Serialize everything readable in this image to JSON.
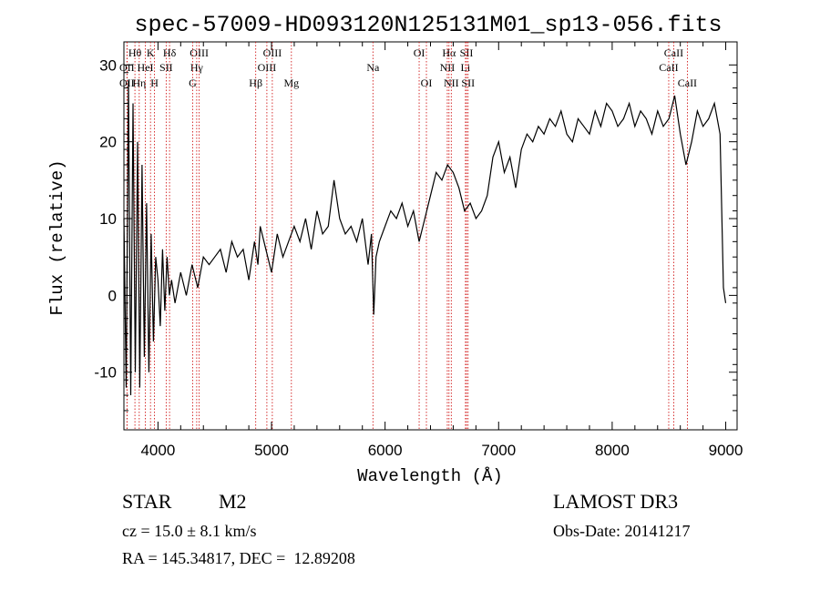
{
  "chart_data": {
    "type": "line",
    "title": "spec-57009-HD093120N125131M01_sp13-056.fits",
    "xlabel": "Wavelength (Å)",
    "ylabel": "Flux (relative)",
    "xlim": [
      3700,
      9100
    ],
    "ylim": [
      -17.5,
      33
    ],
    "x_ticks": [
      4000,
      5000,
      6000,
      7000,
      8000,
      9000
    ],
    "y_ticks": [
      -10,
      0,
      10,
      20,
      30
    ],
    "grid": false,
    "colors": {
      "spectrum": "#000000",
      "lines": "#cc0000"
    },
    "series": [
      {
        "x": [
          3700,
          3720,
          3740,
          3760,
          3780,
          3800,
          3820,
          3840,
          3860,
          3880,
          3900,
          3920,
          3940,
          3960,
          3980,
          4000,
          4020,
          4040,
          4060,
          4080,
          4100,
          4120,
          4150,
          4200,
          4250,
          4300,
          4350,
          4400,
          4450,
          4500,
          4550,
          4600,
          4650,
          4700,
          4750,
          4800,
          4850,
          4880,
          4900,
          4950,
          5000,
          5050,
          5100,
          5150,
          5200,
          5250,
          5300,
          5350,
          5400,
          5450,
          5500,
          5550,
          5600,
          5650,
          5700,
          5750,
          5800,
          5850,
          5880,
          5900,
          5920,
          5950,
          6000,
          6050,
          6100,
          6150,
          6200,
          6250,
          6300,
          6350,
          6400,
          6450,
          6500,
          6550,
          6600,
          6650,
          6700,
          6750,
          6800,
          6850,
          6900,
          6950,
          7000,
          7050,
          7100,
          7150,
          7200,
          7250,
          7300,
          7350,
          7400,
          7450,
          7500,
          7550,
          7600,
          7650,
          7700,
          7750,
          7800,
          7850,
          7900,
          7950,
          8000,
          8050,
          8100,
          8150,
          8200,
          8250,
          8300,
          8350,
          8400,
          8450,
          8500,
          8550,
          8600,
          8650,
          8700,
          8750,
          8800,
          8850,
          8900,
          8950,
          8980,
          9000
        ],
        "y": [
          10,
          -12,
          28,
          -13,
          25,
          -10,
          20,
          -12,
          17,
          -8,
          12,
          -10,
          8,
          -6,
          5,
          2,
          -4,
          6,
          -2,
          5,
          0,
          2,
          -1,
          3,
          0,
          4,
          1,
          5,
          4,
          5,
          6,
          3,
          7,
          5,
          6,
          2,
          7,
          4,
          9,
          6,
          3,
          8,
          5,
          7,
          9,
          7,
          10,
          6,
          11,
          8,
          9,
          15,
          10,
          8,
          9,
          7,
          10,
          4,
          8,
          -2.5,
          5,
          7,
          9,
          11,
          10,
          12,
          9,
          11,
          7,
          10,
          13,
          16,
          15,
          17,
          16,
          14,
          11,
          12,
          10,
          11,
          13,
          18,
          20,
          16,
          18,
          14,
          19,
          21,
          20,
          22,
          21,
          23,
          22,
          24,
          21,
          20,
          23,
          22,
          21,
          24,
          22,
          25,
          24,
          22,
          23,
          25,
          22,
          24,
          23,
          21,
          24,
          22,
          23,
          26,
          21,
          17,
          20,
          24,
          22,
          23,
          25,
          21,
          1,
          -1
        ]
      }
    ],
    "line_markers": [
      {
        "label": "Hθ",
        "x": 3797,
        "row": 0
      },
      {
        "label": "OII",
        "x": 3727,
        "row": 1
      },
      {
        "label": "OII",
        "x": 3727,
        "row": 2
      },
      {
        "label": "Hη",
        "x": 3835,
        "row": 2
      },
      {
        "label": "K",
        "x": 3934,
        "row": 0
      },
      {
        "label": "HeI",
        "x": 3889,
        "row": 1
      },
      {
        "label": "SII",
        "x": 4072,
        "row": 1
      },
      {
        "label": "H",
        "x": 3969,
        "row": 2
      },
      {
        "label": "Hδ",
        "x": 4102,
        "row": 0
      },
      {
        "label": "OIII",
        "x": 4363,
        "row": 0
      },
      {
        "label": "Hγ",
        "x": 4341,
        "row": 1
      },
      {
        "label": "G",
        "x": 4305,
        "row": 2
      },
      {
        "label": "OIII",
        "x": 5007,
        "row": 0
      },
      {
        "label": "OIII",
        "x": 4959,
        "row": 1
      },
      {
        "label": "Hβ",
        "x": 4861,
        "row": 2
      },
      {
        "label": "Mg",
        "x": 5175,
        "row": 2
      },
      {
        "label": "Na",
        "x": 5893,
        "row": 1
      },
      {
        "label": "OI",
        "x": 6300,
        "row": 0
      },
      {
        "label": "OI",
        "x": 6364,
        "row": 2
      },
      {
        "label": "Hα",
        "x": 6563,
        "row": 0
      },
      {
        "label": "SII",
        "x": 6717,
        "row": 0
      },
      {
        "label": "NII",
        "x": 6548,
        "row": 1
      },
      {
        "label": "Li",
        "x": 6708,
        "row": 1
      },
      {
        "label": "NII",
        "x": 6583,
        "row": 2
      },
      {
        "label": "SII",
        "x": 6731,
        "row": 2
      },
      {
        "label": "CaII",
        "x": 8542,
        "row": 0
      },
      {
        "label": "CaII",
        "x": 8498,
        "row": 1
      },
      {
        "label": "CaII",
        "x": 8662,
        "row": 2
      }
    ]
  },
  "info": {
    "object_class": "STAR",
    "subclass": "M2",
    "cz": "cz = 15.0 ± 8.1 km/s",
    "coords": "RA = 145.34817, DEC =  12.89208",
    "survey": "LAMOST DR3",
    "obs_date": "Obs-Date: 20141217"
  }
}
